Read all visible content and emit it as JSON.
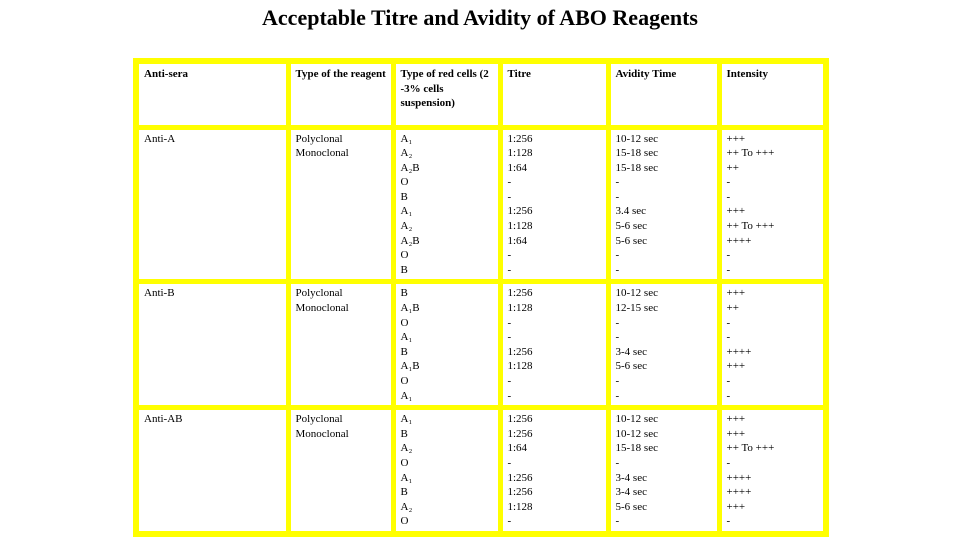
{
  "title": "Acceptable Titre and Avidity of ABO Reagents",
  "colors": {
    "table_border": "#ffff00",
    "text": "#000000",
    "background": "#ffffff"
  },
  "table": {
    "columns": [
      "Anti-sera",
      "Type of the reagent",
      "Type of red cells (2 -3% cells suspension)",
      "Titre",
      "Avidity Time",
      "Intensity"
    ],
    "rows": [
      {
        "anti_sera": "Anti-A",
        "reagent_types": [
          "Polyclonal",
          "Monoclonal"
        ],
        "red_cells": [
          "A₁",
          "A₂",
          "A₂B",
          "O",
          "B",
          "A₁",
          "A₂",
          "A₂B",
          "O",
          "B"
        ],
        "titre": [
          "1:256",
          "1:128",
          "1:64",
          "-",
          "-",
          "1:256",
          "1:128",
          "1:64",
          "-",
          "-"
        ],
        "avidity_time": [
          "10-12 sec",
          "15-18 sec",
          "15-18 sec",
          "-",
          "-",
          "3.4 sec",
          "5-6 sec",
          "5-6 sec",
          "-",
          "-"
        ],
        "intensity": [
          "+++",
          "++ To +++",
          "++",
          "-",
          "-",
          "+++",
          "++ To +++",
          "++++",
          "-",
          "-"
        ]
      },
      {
        "anti_sera": "Anti-B",
        "reagent_types": [
          "Polyclonal",
          "Monoclonal"
        ],
        "red_cells": [
          "B",
          "A₁B",
          "O",
          "A₁",
          "B",
          "A₁B",
          "O",
          "A₁"
        ],
        "titre": [
          "1:256",
          "1:128",
          "-",
          "-",
          "1:256",
          "1:128",
          "-",
          "-"
        ],
        "avidity_time": [
          "10-12 sec",
          "12-15 sec",
          "-",
          "-",
          "3-4 sec",
          "5-6 sec",
          "-",
          "-"
        ],
        "intensity": [
          "+++",
          "++",
          "-",
          "-",
          "++++",
          "+++",
          "-",
          "-"
        ]
      },
      {
        "anti_sera": "Anti-AB",
        "reagent_types": [
          "Polyclonal",
          "Monoclonal"
        ],
        "red_cells": [
          "A₁",
          "B",
          "A₂",
          "O",
          "A₁",
          "B",
          "A₂",
          "O"
        ],
        "titre": [
          "1:256",
          "1:256",
          "1:64",
          "-",
          "1:256",
          "1:256",
          "1:128",
          "-"
        ],
        "avidity_time": [
          "10-12 sec",
          "10-12 sec",
          "15-18 sec",
          "-",
          "3-4 sec",
          "3-4 sec",
          "5-6 sec",
          "-"
        ],
        "intensity": [
          "+++",
          "+++",
          "++ To +++",
          "-",
          "++++",
          "++++",
          "+++",
          "-"
        ]
      }
    ]
  }
}
